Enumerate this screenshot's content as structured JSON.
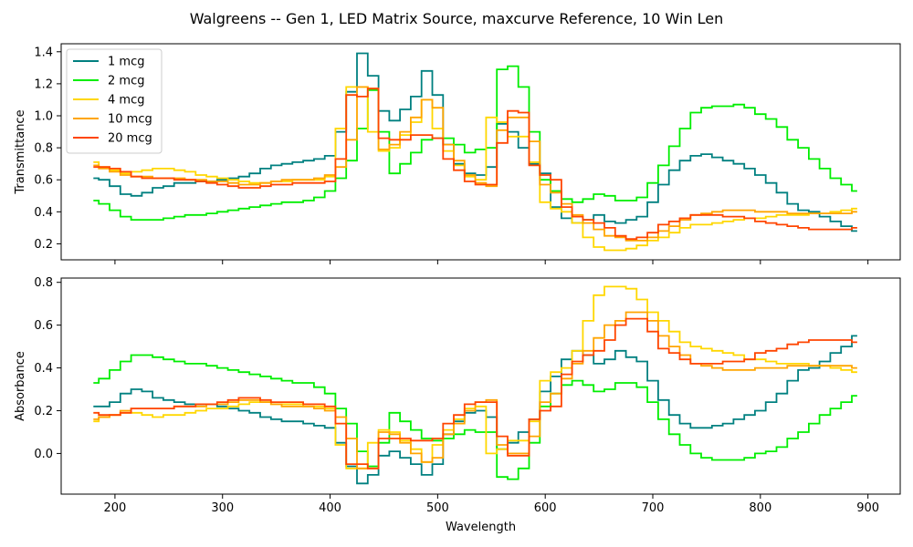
{
  "figure": {
    "title": "Walgreens -- Gen 1, LED Matrix Source, maxcurve Reference, 10 Win Len"
  },
  "chart_data": [
    {
      "type": "line",
      "step": true,
      "xlabel": "",
      "ylabel": "Transmittance",
      "xlim": [
        150,
        930
      ],
      "ylim": [
        0.1,
        1.45
      ],
      "xticks": [
        200,
        300,
        400,
        500,
        600,
        700,
        800,
        900
      ],
      "xtick_labels_visible": false,
      "yticks": [
        0.2,
        0.4,
        0.6,
        0.8,
        1.0,
        1.2,
        1.4
      ],
      "ytick_labels": [
        "0.2",
        "0.4",
        "0.6",
        "0.8",
        "1.0",
        "1.2",
        "1.4"
      ],
      "legend": "top-left",
      "x": [
        180,
        190,
        200,
        210,
        220,
        230,
        240,
        250,
        260,
        270,
        280,
        290,
        300,
        310,
        320,
        330,
        340,
        350,
        360,
        370,
        380,
        390,
        400,
        410,
        420,
        430,
        440,
        450,
        460,
        470,
        480,
        490,
        500,
        510,
        520,
        530,
        540,
        550,
        560,
        570,
        580,
        590,
        600,
        610,
        620,
        630,
        640,
        650,
        660,
        670,
        680,
        690,
        700,
        710,
        720,
        730,
        740,
        750,
        760,
        770,
        780,
        790,
        800,
        810,
        820,
        830,
        840,
        850,
        860,
        870,
        880,
        890
      ],
      "series": [
        {
          "name": "1 mcg",
          "color": "#008080",
          "values": [
            0.61,
            0.6,
            0.56,
            0.51,
            0.5,
            0.52,
            0.55,
            0.56,
            0.58,
            0.58,
            0.59,
            0.59,
            0.6,
            0.61,
            0.62,
            0.64,
            0.67,
            0.69,
            0.7,
            0.71,
            0.72,
            0.73,
            0.75,
            0.9,
            1.15,
            1.39,
            1.25,
            1.03,
            0.97,
            1.04,
            1.12,
            1.28,
            1.13,
            0.82,
            0.7,
            0.64,
            0.63,
            0.68,
            0.95,
            0.9,
            0.8,
            0.7,
            0.64,
            0.43,
            0.36,
            0.33,
            0.35,
            0.38,
            0.34,
            0.33,
            0.35,
            0.37,
            0.46,
            0.57,
            0.66,
            0.72,
            0.75,
            0.76,
            0.74,
            0.72,
            0.7,
            0.67,
            0.63,
            0.58,
            0.52,
            0.45,
            0.41,
            0.4,
            0.37,
            0.34,
            0.31,
            0.28
          ]
        },
        {
          "name": "2 mcg",
          "color": "#00ee00",
          "values": [
            0.47,
            0.45,
            0.41,
            0.37,
            0.35,
            0.35,
            0.35,
            0.36,
            0.37,
            0.38,
            0.38,
            0.39,
            0.4,
            0.41,
            0.42,
            0.43,
            0.44,
            0.45,
            0.46,
            0.46,
            0.47,
            0.49,
            0.53,
            0.61,
            0.72,
            0.92,
            1.16,
            0.9,
            0.64,
            0.7,
            0.77,
            0.85,
            0.86,
            0.86,
            0.82,
            0.77,
            0.79,
            0.8,
            1.29,
            1.31,
            1.18,
            0.9,
            0.6,
            0.53,
            0.48,
            0.46,
            0.48,
            0.51,
            0.5,
            0.47,
            0.47,
            0.49,
            0.58,
            0.69,
            0.81,
            0.92,
            1.02,
            1.05,
            1.06,
            1.06,
            1.07,
            1.05,
            1.01,
            0.98,
            0.93,
            0.85,
            0.8,
            0.73,
            0.67,
            0.61,
            0.57,
            0.53
          ]
        },
        {
          "name": "4 mcg",
          "color": "#ffd700",
          "values": [
            0.71,
            0.68,
            0.66,
            0.64,
            0.65,
            0.66,
            0.67,
            0.67,
            0.66,
            0.65,
            0.63,
            0.62,
            0.61,
            0.6,
            0.59,
            0.58,
            0.58,
            0.59,
            0.59,
            0.6,
            0.6,
            0.6,
            0.62,
            0.92,
            1.18,
            1.18,
            0.9,
            0.78,
            0.8,
            0.88,
            0.96,
            1.1,
            0.92,
            0.78,
            0.69,
            0.62,
            0.6,
            0.99,
            0.96,
            0.87,
            0.87,
            0.71,
            0.46,
            0.42,
            0.4,
            0.33,
            0.24,
            0.18,
            0.16,
            0.16,
            0.17,
            0.19,
            0.22,
            0.24,
            0.27,
            0.3,
            0.32,
            0.32,
            0.33,
            0.34,
            0.35,
            0.36,
            0.36,
            0.37,
            0.38,
            0.38,
            0.38,
            0.39,
            0.39,
            0.4,
            0.41,
            0.42
          ]
        },
        {
          "name": "10 mcg",
          "color": "#ffa500",
          "values": [
            0.69,
            0.67,
            0.65,
            0.63,
            0.62,
            0.62,
            0.61,
            0.61,
            0.61,
            0.6,
            0.6,
            0.59,
            0.59,
            0.58,
            0.57,
            0.57,
            0.58,
            0.59,
            0.6,
            0.6,
            0.6,
            0.61,
            0.63,
            0.68,
            0.85,
            1.18,
            1.17,
            0.79,
            0.82,
            0.9,
            0.99,
            1.1,
            1.05,
            0.82,
            0.72,
            0.63,
            0.58,
            0.56,
            0.91,
            0.99,
            0.99,
            0.84,
            0.57,
            0.52,
            0.45,
            0.38,
            0.33,
            0.29,
            0.25,
            0.24,
            0.22,
            0.22,
            0.24,
            0.28,
            0.31,
            0.35,
            0.38,
            0.39,
            0.4,
            0.41,
            0.41,
            0.41,
            0.4,
            0.4,
            0.4,
            0.39,
            0.39,
            0.39,
            0.39,
            0.39,
            0.39,
            0.4
          ]
        },
        {
          "name": "20 mcg",
          "color": "#ff4500",
          "values": [
            0.68,
            0.68,
            0.67,
            0.65,
            0.62,
            0.61,
            0.61,
            0.61,
            0.6,
            0.6,
            0.59,
            0.58,
            0.57,
            0.56,
            0.55,
            0.55,
            0.56,
            0.57,
            0.57,
            0.58,
            0.58,
            0.58,
            0.59,
            0.73,
            1.13,
            1.12,
            1.17,
            0.86,
            0.85,
            0.85,
            0.88,
            0.88,
            0.86,
            0.73,
            0.66,
            0.59,
            0.57,
            0.57,
            0.83,
            1.03,
            1.02,
            0.69,
            0.63,
            0.6,
            0.43,
            0.37,
            0.35,
            0.33,
            0.3,
            0.25,
            0.23,
            0.24,
            0.27,
            0.32,
            0.34,
            0.36,
            0.38,
            0.38,
            0.38,
            0.37,
            0.37,
            0.36,
            0.34,
            0.33,
            0.32,
            0.31,
            0.3,
            0.29,
            0.29,
            0.29,
            0.29,
            0.3
          ]
        }
      ]
    },
    {
      "type": "line",
      "step": true,
      "xlabel": "Wavelength",
      "ylabel": "Absorbance",
      "xlim": [
        150,
        930
      ],
      "ylim": [
        -0.19,
        0.82
      ],
      "xticks": [
        200,
        300,
        400,
        500,
        600,
        700,
        800,
        900
      ],
      "xtick_labels": [
        "200",
        "300",
        "400",
        "500",
        "600",
        "700",
        "800",
        "900"
      ],
      "yticks": [
        0.0,
        0.2,
        0.4,
        0.6,
        0.8
      ],
      "ytick_labels": [
        "0.0",
        "0.2",
        "0.4",
        "0.6",
        "0.8"
      ],
      "x": [
        180,
        190,
        200,
        210,
        220,
        230,
        240,
        250,
        260,
        270,
        280,
        290,
        300,
        310,
        320,
        330,
        340,
        350,
        360,
        370,
        380,
        390,
        400,
        410,
        420,
        430,
        440,
        450,
        460,
        470,
        480,
        490,
        500,
        510,
        520,
        530,
        540,
        550,
        560,
        570,
        580,
        590,
        600,
        610,
        620,
        630,
        640,
        650,
        660,
        670,
        680,
        690,
        700,
        710,
        720,
        730,
        740,
        750,
        760,
        770,
        780,
        790,
        800,
        810,
        820,
        830,
        840,
        850,
        860,
        870,
        880,
        890
      ],
      "series": [
        {
          "name": "1 mcg",
          "color": "#008080",
          "values": [
            0.22,
            0.22,
            0.24,
            0.28,
            0.3,
            0.29,
            0.26,
            0.25,
            0.24,
            0.23,
            0.23,
            0.23,
            0.22,
            0.21,
            0.2,
            0.19,
            0.17,
            0.16,
            0.15,
            0.15,
            0.14,
            0.13,
            0.12,
            0.05,
            -0.06,
            -0.14,
            -0.1,
            -0.01,
            0.01,
            -0.02,
            -0.05,
            -0.1,
            -0.05,
            0.09,
            0.15,
            0.19,
            0.2,
            0.17,
            0.02,
            0.05,
            0.1,
            0.16,
            0.29,
            0.36,
            0.44,
            0.48,
            0.46,
            0.42,
            0.44,
            0.48,
            0.45,
            0.43,
            0.34,
            0.25,
            0.18,
            0.14,
            0.12,
            0.12,
            0.13,
            0.14,
            0.16,
            0.18,
            0.2,
            0.24,
            0.28,
            0.34,
            0.39,
            0.4,
            0.43,
            0.47,
            0.5,
            0.55
          ]
        },
        {
          "name": "2 mcg",
          "color": "#00ee00",
          "values": [
            0.33,
            0.35,
            0.39,
            0.43,
            0.46,
            0.46,
            0.45,
            0.44,
            0.43,
            0.42,
            0.42,
            0.41,
            0.4,
            0.39,
            0.38,
            0.37,
            0.36,
            0.35,
            0.34,
            0.33,
            0.33,
            0.31,
            0.28,
            0.21,
            0.14,
            0.01,
            -0.06,
            0.05,
            0.19,
            0.15,
            0.11,
            0.07,
            0.06,
            0.07,
            0.09,
            0.11,
            0.1,
            0.1,
            -0.11,
            -0.12,
            -0.07,
            0.05,
            0.22,
            0.28,
            0.32,
            0.34,
            0.32,
            0.29,
            0.3,
            0.33,
            0.33,
            0.31,
            0.24,
            0.16,
            0.09,
            0.04,
            0.0,
            -0.02,
            -0.03,
            -0.03,
            -0.03,
            -0.02,
            0.0,
            0.01,
            0.03,
            0.07,
            0.1,
            0.14,
            0.18,
            0.21,
            0.24,
            0.27
          ]
        },
        {
          "name": "4 mcg",
          "color": "#ffd700",
          "values": [
            0.15,
            0.17,
            0.18,
            0.19,
            0.19,
            0.18,
            0.17,
            0.18,
            0.18,
            0.19,
            0.2,
            0.21,
            0.21,
            0.22,
            0.23,
            0.24,
            0.24,
            0.23,
            0.23,
            0.23,
            0.22,
            0.22,
            0.21,
            0.04,
            -0.07,
            -0.07,
            0.05,
            0.11,
            0.1,
            0.06,
            0.02,
            -0.04,
            0.04,
            0.11,
            0.16,
            0.21,
            0.22,
            0.0,
            0.02,
            0.06,
            0.06,
            0.15,
            0.34,
            0.38,
            0.4,
            0.48,
            0.62,
            0.74,
            0.78,
            0.78,
            0.77,
            0.72,
            0.66,
            0.62,
            0.57,
            0.52,
            0.5,
            0.49,
            0.48,
            0.47,
            0.46,
            0.44,
            0.44,
            0.43,
            0.42,
            0.42,
            0.42,
            0.41,
            0.41,
            0.4,
            0.39,
            0.38
          ]
        },
        {
          "name": "10 mcg",
          "color": "#ffa500",
          "values": [
            0.16,
            0.17,
            0.18,
            0.2,
            0.21,
            0.21,
            0.21,
            0.21,
            0.22,
            0.22,
            0.22,
            0.23,
            0.23,
            0.24,
            0.25,
            0.25,
            0.24,
            0.23,
            0.22,
            0.22,
            0.22,
            0.21,
            0.2,
            0.17,
            0.07,
            -0.07,
            -0.07,
            0.1,
            0.09,
            0.05,
            0.0,
            -0.04,
            -0.02,
            0.09,
            0.14,
            0.2,
            0.24,
            0.25,
            0.04,
            0.0,
            0.0,
            0.08,
            0.24,
            0.28,
            0.35,
            0.42,
            0.48,
            0.54,
            0.6,
            0.62,
            0.66,
            0.66,
            0.62,
            0.55,
            0.5,
            0.46,
            0.42,
            0.41,
            0.4,
            0.39,
            0.39,
            0.39,
            0.4,
            0.4,
            0.4,
            0.41,
            0.41,
            0.41,
            0.41,
            0.41,
            0.41,
            0.4
          ]
        },
        {
          "name": "20 mcg",
          "color": "#ff4500",
          "values": [
            0.19,
            0.18,
            0.18,
            0.19,
            0.21,
            0.21,
            0.21,
            0.21,
            0.22,
            0.22,
            0.23,
            0.23,
            0.24,
            0.25,
            0.26,
            0.26,
            0.25,
            0.24,
            0.24,
            0.24,
            0.23,
            0.23,
            0.22,
            0.14,
            -0.05,
            -0.05,
            -0.07,
            0.07,
            0.07,
            0.07,
            0.06,
            0.06,
            0.07,
            0.14,
            0.18,
            0.23,
            0.24,
            0.24,
            0.08,
            -0.01,
            -0.01,
            0.16,
            0.2,
            0.22,
            0.37,
            0.43,
            0.46,
            0.48,
            0.53,
            0.6,
            0.63,
            0.63,
            0.57,
            0.49,
            0.47,
            0.44,
            0.42,
            0.42,
            0.42,
            0.43,
            0.43,
            0.44,
            0.47,
            0.48,
            0.49,
            0.51,
            0.52,
            0.53,
            0.53,
            0.53,
            0.53,
            0.52
          ]
        }
      ]
    }
  ]
}
